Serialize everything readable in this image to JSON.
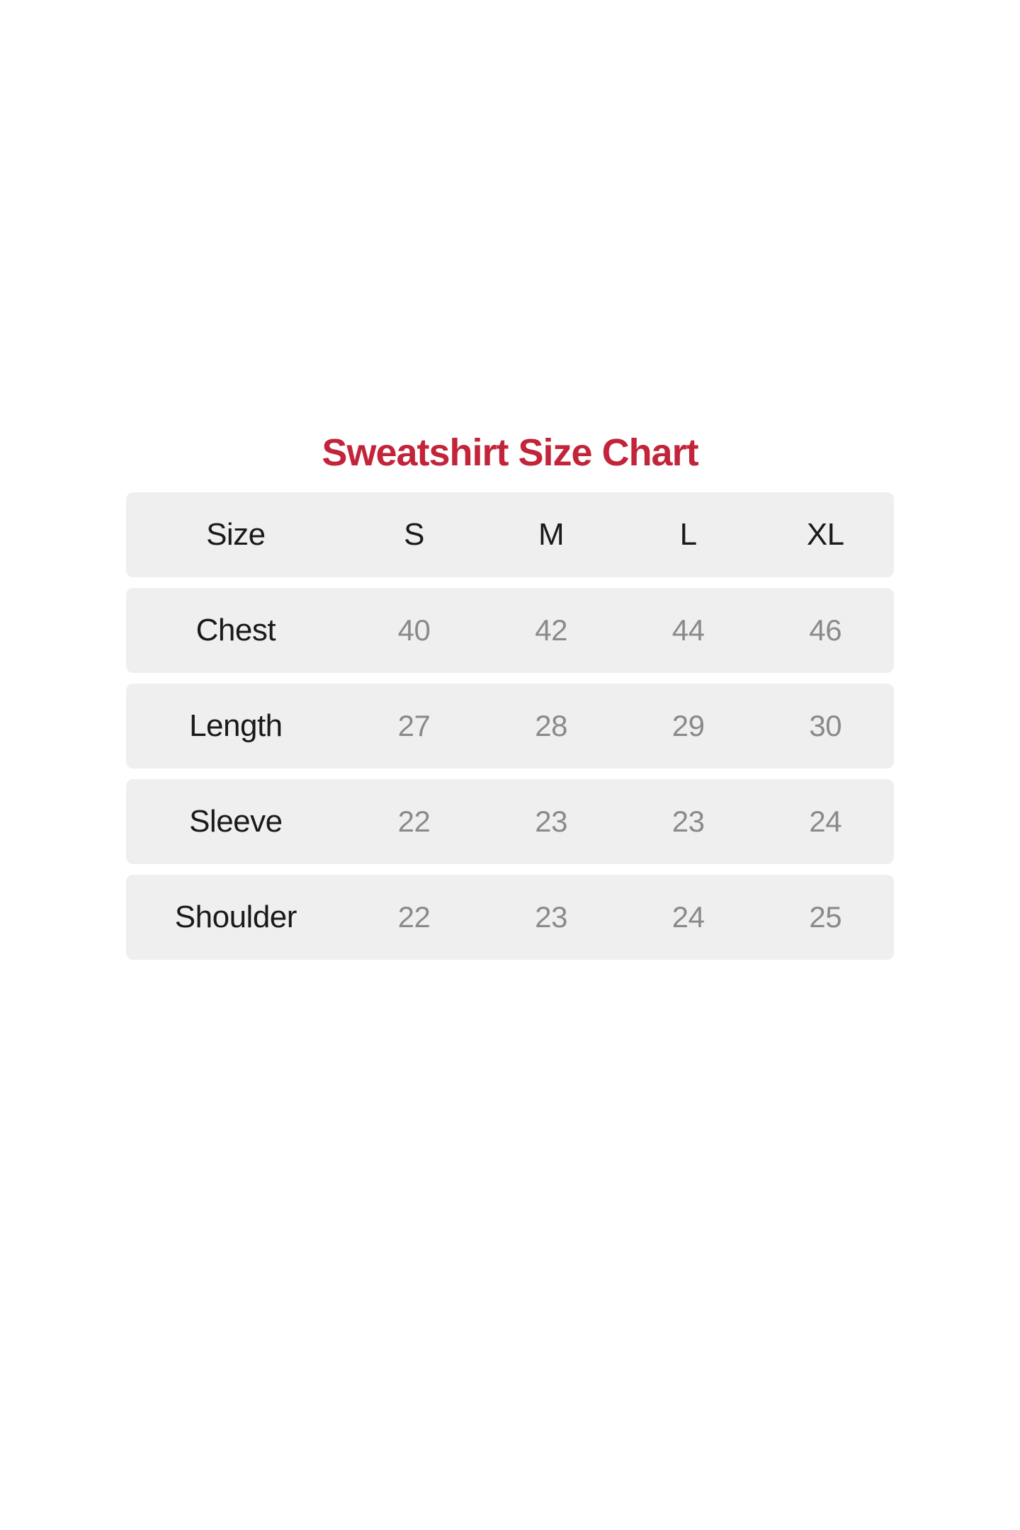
{
  "title": "Sweatshirt Size Chart",
  "colors": {
    "title_text": "#C2243A",
    "row_background": "#EFEFEF",
    "label_text": "#1A1A1A",
    "value_text": "#8A8A8A",
    "page_background": "#FFFFFF"
  },
  "chart_data": {
    "type": "table",
    "title": "Sweatshirt Size Chart",
    "columns": [
      "Size",
      "S",
      "M",
      "L",
      "XL"
    ],
    "rows": [
      {
        "label": "Chest",
        "values": [
          "40",
          "42",
          "44",
          "46"
        ]
      },
      {
        "label": "Length",
        "values": [
          "27",
          "28",
          "29",
          "30"
        ]
      },
      {
        "label": "Sleeve",
        "values": [
          "22",
          "23",
          "23",
          "24"
        ]
      },
      {
        "label": "Shoulder",
        "values": [
          "22",
          "23",
          "24",
          "25"
        ]
      }
    ]
  }
}
